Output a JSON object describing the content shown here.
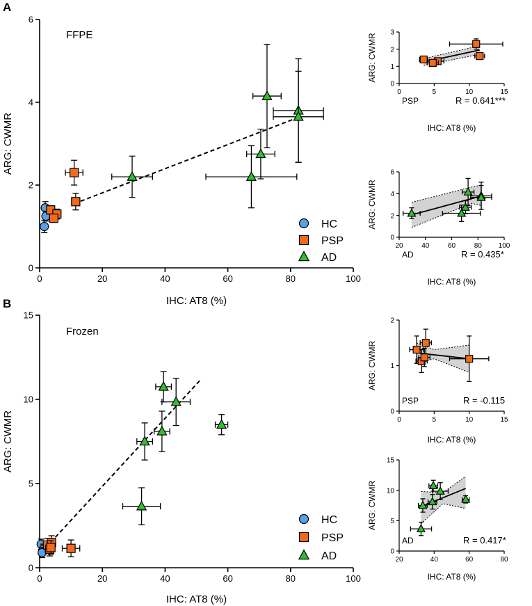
{
  "figure": {
    "panel_labels": [
      "A",
      "B"
    ],
    "colors": {
      "HC": "#5aa0e6",
      "PSP": "#f26a1b",
      "AD": "#2fbf2f",
      "band": "#c8c8c8"
    }
  },
  "chart_data": [
    {
      "id": "ffpe_main",
      "type": "scatter",
      "title": "FFPE",
      "xlabel": "IHC: AT8 (%)",
      "ylabel": "ARG: CWMR",
      "xlim": [
        0,
        100
      ],
      "ylim": [
        0,
        6
      ],
      "xticks": [
        0,
        20,
        40,
        60,
        80,
        100
      ],
      "yticks": [
        0,
        2,
        4,
        6
      ],
      "legend": [
        "HC",
        "PSP",
        "AD"
      ],
      "fit": {
        "style": "dashed",
        "x": [
          11,
          83
        ],
        "y": [
          1.55,
          3.65
        ]
      },
      "series": [
        {
          "name": "HC",
          "marker": "circle",
          "points": [
            {
              "x": 1.8,
              "y": 1.45,
              "xe": 0.4,
              "ye": 0.15
            },
            {
              "x": 2.0,
              "y": 1.25,
              "xe": 0.4,
              "ye": 0.12
            },
            {
              "x": 1.5,
              "y": 1.0,
              "xe": 0.4,
              "ye": 0.15
            }
          ]
        },
        {
          "name": "PSP",
          "marker": "square",
          "points": [
            {
              "x": 3.5,
              "y": 1.4,
              "xe": 1.0,
              "ye": 0.1
            },
            {
              "x": 5.5,
              "y": 1.3,
              "xe": 1.0,
              "ye": 0.12
            },
            {
              "x": 4.5,
              "y": 1.2,
              "xe": 1.0,
              "ye": 0.1
            },
            {
              "x": 11,
              "y": 2.3,
              "xe": 2.8,
              "ye": 0.3
            },
            {
              "x": 11.5,
              "y": 1.6,
              "xe": 1.3,
              "ye": 0.2
            }
          ]
        },
        {
          "name": "AD",
          "marker": "triangle",
          "points": [
            {
              "x": 29.5,
              "y": 2.2,
              "xe": 6.5,
              "ye": 0.5
            },
            {
              "x": 67.5,
              "y": 2.2,
              "xe": 14.5,
              "ye": 0.75
            },
            {
              "x": 70.5,
              "y": 2.75,
              "xe": 4.5,
              "ye": 0.6
            },
            {
              "x": 72.5,
              "y": 4.15,
              "xe": 4.5,
              "ye": 1.25
            },
            {
              "x": 82.5,
              "y": 3.8,
              "xe": 8,
              "ye": 1.25
            },
            {
              "x": 82.5,
              "y": 3.65,
              "xe": 8,
              "ye": 1.1
            }
          ]
        }
      ]
    },
    {
      "id": "ffpe_psp",
      "type": "scatter",
      "xlabel": "IHC: AT8 (%)",
      "ylabel": "ARG: CWMR",
      "xlim": [
        0,
        15
      ],
      "ylim": [
        0,
        3
      ],
      "xticks": [
        0,
        5,
        10,
        15
      ],
      "yticks": [
        0,
        1,
        2,
        3
      ],
      "group_label": "PSP",
      "r_text": "R = 0.641***",
      "fit": {
        "style": "solid",
        "x": [
          3.5,
          11.5
        ],
        "y": [
          1.25,
          1.95
        ]
      },
      "band": {
        "x": [
          3.5,
          11.5
        ],
        "lo": [
          1.05,
          1.7
        ],
        "hi": [
          1.45,
          2.2
        ]
      },
      "series": [
        {
          "name": "PSP",
          "marker": "square",
          "points": [
            {
              "x": 3.5,
              "y": 1.4,
              "xe": 0.6,
              "ye": 0.1
            },
            {
              "x": 5.5,
              "y": 1.3,
              "xe": 0.9,
              "ye": 0.12
            },
            {
              "x": 4.8,
              "y": 1.2,
              "xe": 0.8,
              "ye": 0.1
            },
            {
              "x": 11,
              "y": 2.3,
              "xe": 3.8,
              "ye": 0.3
            },
            {
              "x": 11.5,
              "y": 1.6,
              "xe": 0.7,
              "ye": 0.2
            }
          ]
        }
      ]
    },
    {
      "id": "ffpe_ad",
      "type": "scatter",
      "xlabel": "IHC: AT8 (%)",
      "ylabel": "ARG: CWMR",
      "xlim": [
        20,
        100
      ],
      "ylim": [
        0,
        6
      ],
      "xticks": [
        20,
        40,
        60,
        80,
        100
      ],
      "yticks": [
        0,
        2,
        4,
        6
      ],
      "group_label": "AD",
      "r_text": "R = 0.435*",
      "fit": {
        "style": "solid",
        "x": [
          29.5,
          83
        ],
        "y": [
          2.05,
          3.8
        ]
      },
      "band": {
        "x": [
          29.5,
          75,
          83
        ],
        "lo": [
          0.9,
          3.1,
          2.9
        ],
        "hi": [
          3.2,
          4.6,
          4.8
        ]
      },
      "series": [
        {
          "name": "AD",
          "marker": "triangle",
          "points": [
            {
              "x": 29.5,
              "y": 2.2,
              "xe": 6.5,
              "ye": 0.5
            },
            {
              "x": 67.5,
              "y": 2.2,
              "xe": 14.5,
              "ye": 0.75
            },
            {
              "x": 70.5,
              "y": 2.75,
              "xe": 4.5,
              "ye": 0.6
            },
            {
              "x": 72.5,
              "y": 4.15,
              "xe": 4.5,
              "ye": 1.25
            },
            {
              "x": 82.5,
              "y": 3.8,
              "xe": 8,
              "ye": 1.25
            },
            {
              "x": 82.5,
              "y": 3.65,
              "xe": 8,
              "ye": 1.1
            }
          ]
        }
      ]
    },
    {
      "id": "frozen_main",
      "type": "scatter",
      "title": "Frozen",
      "xlabel": "IHC: AT8 (%)",
      "ylabel": "ARG: CWMR",
      "xlim": [
        0,
        100
      ],
      "ylim": [
        0,
        15
      ],
      "xticks": [
        0,
        20,
        40,
        60,
        80,
        100
      ],
      "yticks": [
        0,
        5,
        10,
        15
      ],
      "legend": [
        "HC",
        "PSP",
        "AD"
      ],
      "fit": {
        "style": "dashed",
        "x": [
          2,
          51
        ],
        "y": [
          1.2,
          11.1
        ]
      },
      "series": [
        {
          "name": "HC",
          "marker": "circle",
          "points": [
            {
              "x": 0.5,
              "y": 1.4,
              "xe": 0.3,
              "ye": 0.3
            },
            {
              "x": 1.2,
              "y": 1.1,
              "xe": 0.3,
              "ye": 0.3
            },
            {
              "x": 0.8,
              "y": 0.9,
              "xe": 0.3,
              "ye": 0.3
            }
          ]
        },
        {
          "name": "PSP",
          "marker": "square",
          "points": [
            {
              "x": 2.5,
              "y": 1.35,
              "xe": 1.0,
              "ye": 0.4
            },
            {
              "x": 3.2,
              "y": 1.1,
              "xe": 0.8,
              "ye": 0.4
            },
            {
              "x": 3.8,
              "y": 1.5,
              "xe": 0.8,
              "ye": 0.4
            },
            {
              "x": 3.6,
              "y": 1.2,
              "xe": 0.8,
              "ye": 0.4
            },
            {
              "x": 10,
              "y": 1.15,
              "xe": 2.8,
              "ye": 0.5
            }
          ]
        },
        {
          "name": "AD",
          "marker": "triangle",
          "points": [
            {
              "x": 32.5,
              "y": 3.65,
              "xe": 6,
              "ye": 1.1
            },
            {
              "x": 33.5,
              "y": 7.5,
              "xe": 2.5,
              "ye": 1.1
            },
            {
              "x": 39,
              "y": 8.1,
              "xe": 2.5,
              "ye": 1.2
            },
            {
              "x": 39.5,
              "y": 10.75,
              "xe": 2.5,
              "ye": 0.9
            },
            {
              "x": 43.5,
              "y": 9.85,
              "xe": 4.5,
              "ye": 1.4
            },
            {
              "x": 58,
              "y": 8.5,
              "xe": 2,
              "ye": 0.6
            }
          ]
        }
      ]
    },
    {
      "id": "frozen_psp",
      "type": "scatter",
      "xlabel": "IHC: AT8 (%)",
      "ylabel": "ARG: CWMR",
      "xlim": [
        0,
        15
      ],
      "ylim": [
        0,
        2
      ],
      "xticks": [
        0,
        5,
        10,
        15
      ],
      "yticks": [
        0,
        1,
        2
      ],
      "group_label": "PSP",
      "r_text": "R = -0.115",
      "fit": {
        "style": "solid",
        "x": [
          2.5,
          10
        ],
        "y": [
          1.28,
          1.15
        ]
      },
      "band": {
        "x": [
          2.5,
          5,
          10
        ],
        "lo": [
          1.05,
          1.15,
          0.85
        ],
        "hi": [
          1.5,
          1.35,
          1.45
        ]
      },
      "series": [
        {
          "name": "PSP",
          "marker": "square",
          "points": [
            {
              "x": 2.5,
              "y": 1.35,
              "xe": 1.0,
              "ye": 0.3
            },
            {
              "x": 3.2,
              "y": 1.1,
              "xe": 0.8,
              "ye": 0.25
            },
            {
              "x": 3.8,
              "y": 1.5,
              "xe": 0.8,
              "ye": 0.3
            },
            {
              "x": 3.6,
              "y": 1.18,
              "xe": 0.8,
              "ye": 0.2
            },
            {
              "x": 10,
              "y": 1.15,
              "xe": 2.8,
              "ye": 0.5
            }
          ]
        }
      ]
    },
    {
      "id": "frozen_ad",
      "type": "scatter",
      "xlabel": "IHC: AT8 (%)",
      "ylabel": "ARG: CWMR",
      "xlim": [
        20,
        80
      ],
      "ylim": [
        0,
        15
      ],
      "xticks": [
        20,
        40,
        60,
        80
      ],
      "yticks": [
        0,
        5,
        10,
        15
      ],
      "group_label": "AD",
      "r_text": "R = 0.417*",
      "fit": {
        "style": "solid",
        "x": [
          32.5,
          58
        ],
        "y": [
          7.3,
          10.3
        ]
      },
      "band": {
        "x": [
          32.5,
          45,
          58
        ],
        "lo": [
          4.5,
          7.8,
          7.0
        ],
        "hi": [
          9.8,
          9.6,
          12.3
        ]
      },
      "series": [
        {
          "name": "AD",
          "marker": "triangle",
          "points": [
            {
              "x": 32.5,
              "y": 3.65,
              "xe": 6,
              "ye": 1.1
            },
            {
              "x": 33.5,
              "y": 7.5,
              "xe": 2.5,
              "ye": 1.1
            },
            {
              "x": 39,
              "y": 8.1,
              "xe": 2.5,
              "ye": 1.2
            },
            {
              "x": 39.5,
              "y": 10.75,
              "xe": 2.5,
              "ye": 0.9
            },
            {
              "x": 43.5,
              "y": 9.85,
              "xe": 4.5,
              "ye": 1.4
            },
            {
              "x": 58,
              "y": 8.5,
              "xe": 2,
              "ye": 0.6
            }
          ]
        }
      ]
    }
  ]
}
